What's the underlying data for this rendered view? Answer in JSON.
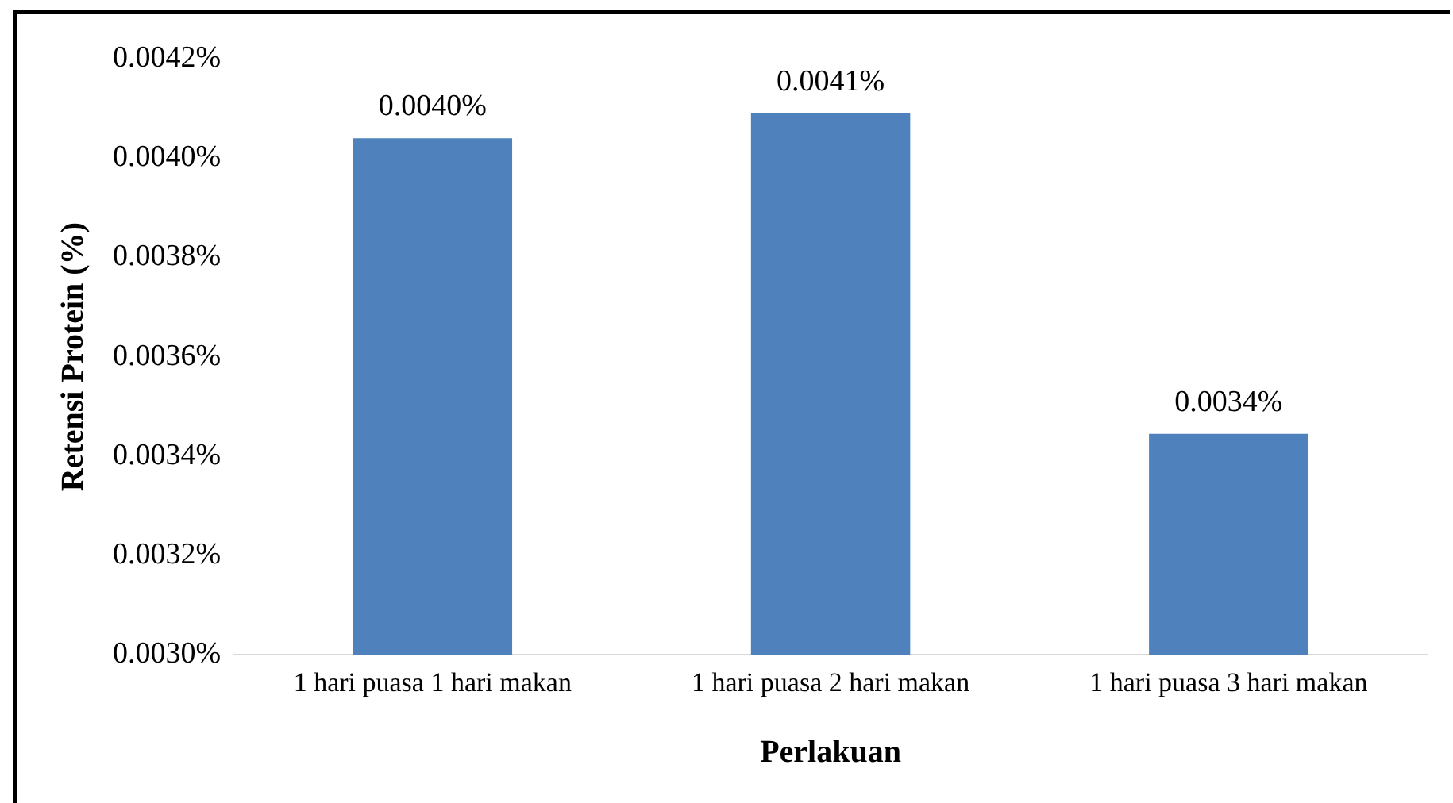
{
  "chart_data": {
    "type": "bar",
    "xlabel": "Perlakuan",
    "ylabel": "Retensi Protein (%)",
    "categories": [
      "1 hari puasa 1 hari makan",
      "1 hari puasa 2 hari makan",
      "1 hari puasa 3 hari makan"
    ],
    "values": [
      0.00404,
      0.00409,
      0.003445
    ],
    "color": "#4f81bd",
    "value_labels": [
      "0.0040%",
      "0.0041%",
      "0.0034%"
    ],
    "ylim": [
      0.003,
      0.0042
    ],
    "yticks": [
      {
        "value": 0.003,
        "label": "0.0030%"
      },
      {
        "value": 0.0032,
        "label": "0.0032%"
      },
      {
        "value": 0.0034,
        "label": "0.0034%"
      },
      {
        "value": 0.0036,
        "label": "0.0036%"
      },
      {
        "value": 0.0038,
        "label": "0.0038%"
      },
      {
        "value": 0.004,
        "label": "0.0040%"
      },
      {
        "value": 0.0042,
        "label": "0.0042%"
      }
    ],
    "grid": false,
    "legend": false
  }
}
